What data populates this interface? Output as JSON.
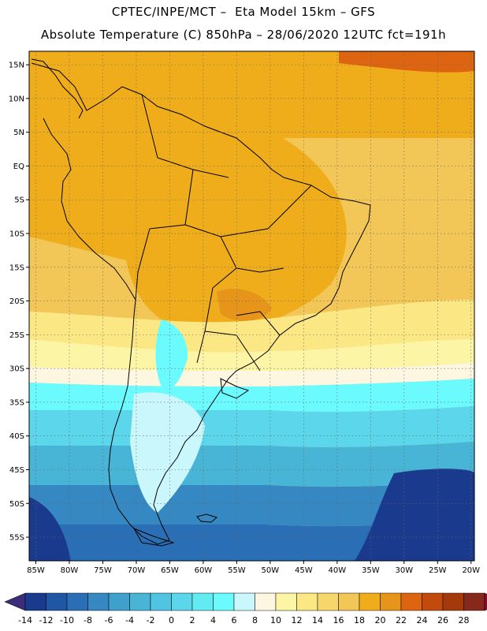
{
  "header": {
    "line1": "CPTEC/INPE/MCT –  Eta Model 15km – GFS",
    "line2": "Absolute Temperature (C) 850hPa – 28/06/2020 12UTC fct=191h"
  },
  "map": {
    "lat_labels": [
      "15N",
      "10N",
      "5N",
      "EQ",
      "5S",
      "10S",
      "15S",
      "20S",
      "25S",
      "30S",
      "35S",
      "40S",
      "45S",
      "50S",
      "55S"
    ],
    "lat_values": [
      15,
      10,
      5,
      0,
      -5,
      -10,
      -15,
      -20,
      -25,
      -30,
      -35,
      -40,
      -45,
      -50,
      -55
    ],
    "lon_labels": [
      "85W",
      "80W",
      "75W",
      "70W",
      "65W",
      "60W",
      "55W",
      "50W",
      "45W",
      "40W",
      "35W",
      "30W",
      "25W",
      "20W"
    ],
    "lon_values": [
      -85,
      -80,
      -75,
      -70,
      -65,
      -60,
      -55,
      -50,
      -45,
      -40,
      -35,
      -30,
      -25,
      -20
    ],
    "lat_range": [
      -58.5,
      17
    ],
    "lon_range": [
      -86,
      -19.5
    ]
  },
  "colorbar": {
    "labels": [
      "-14",
      "-12",
      "-10",
      "-8",
      "-6",
      "-4",
      "-2",
      "0",
      "2",
      "4",
      "6",
      "8",
      "10",
      "12",
      "14",
      "16",
      "18",
      "20",
      "22",
      "24",
      "26",
      "28"
    ],
    "colors": [
      "#1a3a8e",
      "#2056a6",
      "#2a6fb5",
      "#3588c2",
      "#3fa0cc",
      "#48b4d6",
      "#50c4e0",
      "#5cd6ea",
      "#62ecf2",
      "#6bfbff",
      "#c9f7fb",
      "#fdf7e2",
      "#fdf5a6",
      "#fbe784",
      "#f6d76c",
      "#f2c657",
      "#efad1b",
      "#e6951a",
      "#dd6410",
      "#c24a0d",
      "#a43a0c",
      "#86281c"
    ],
    "color_low": "#3c2c7a",
    "color_high": "#8a0a33"
  }
}
